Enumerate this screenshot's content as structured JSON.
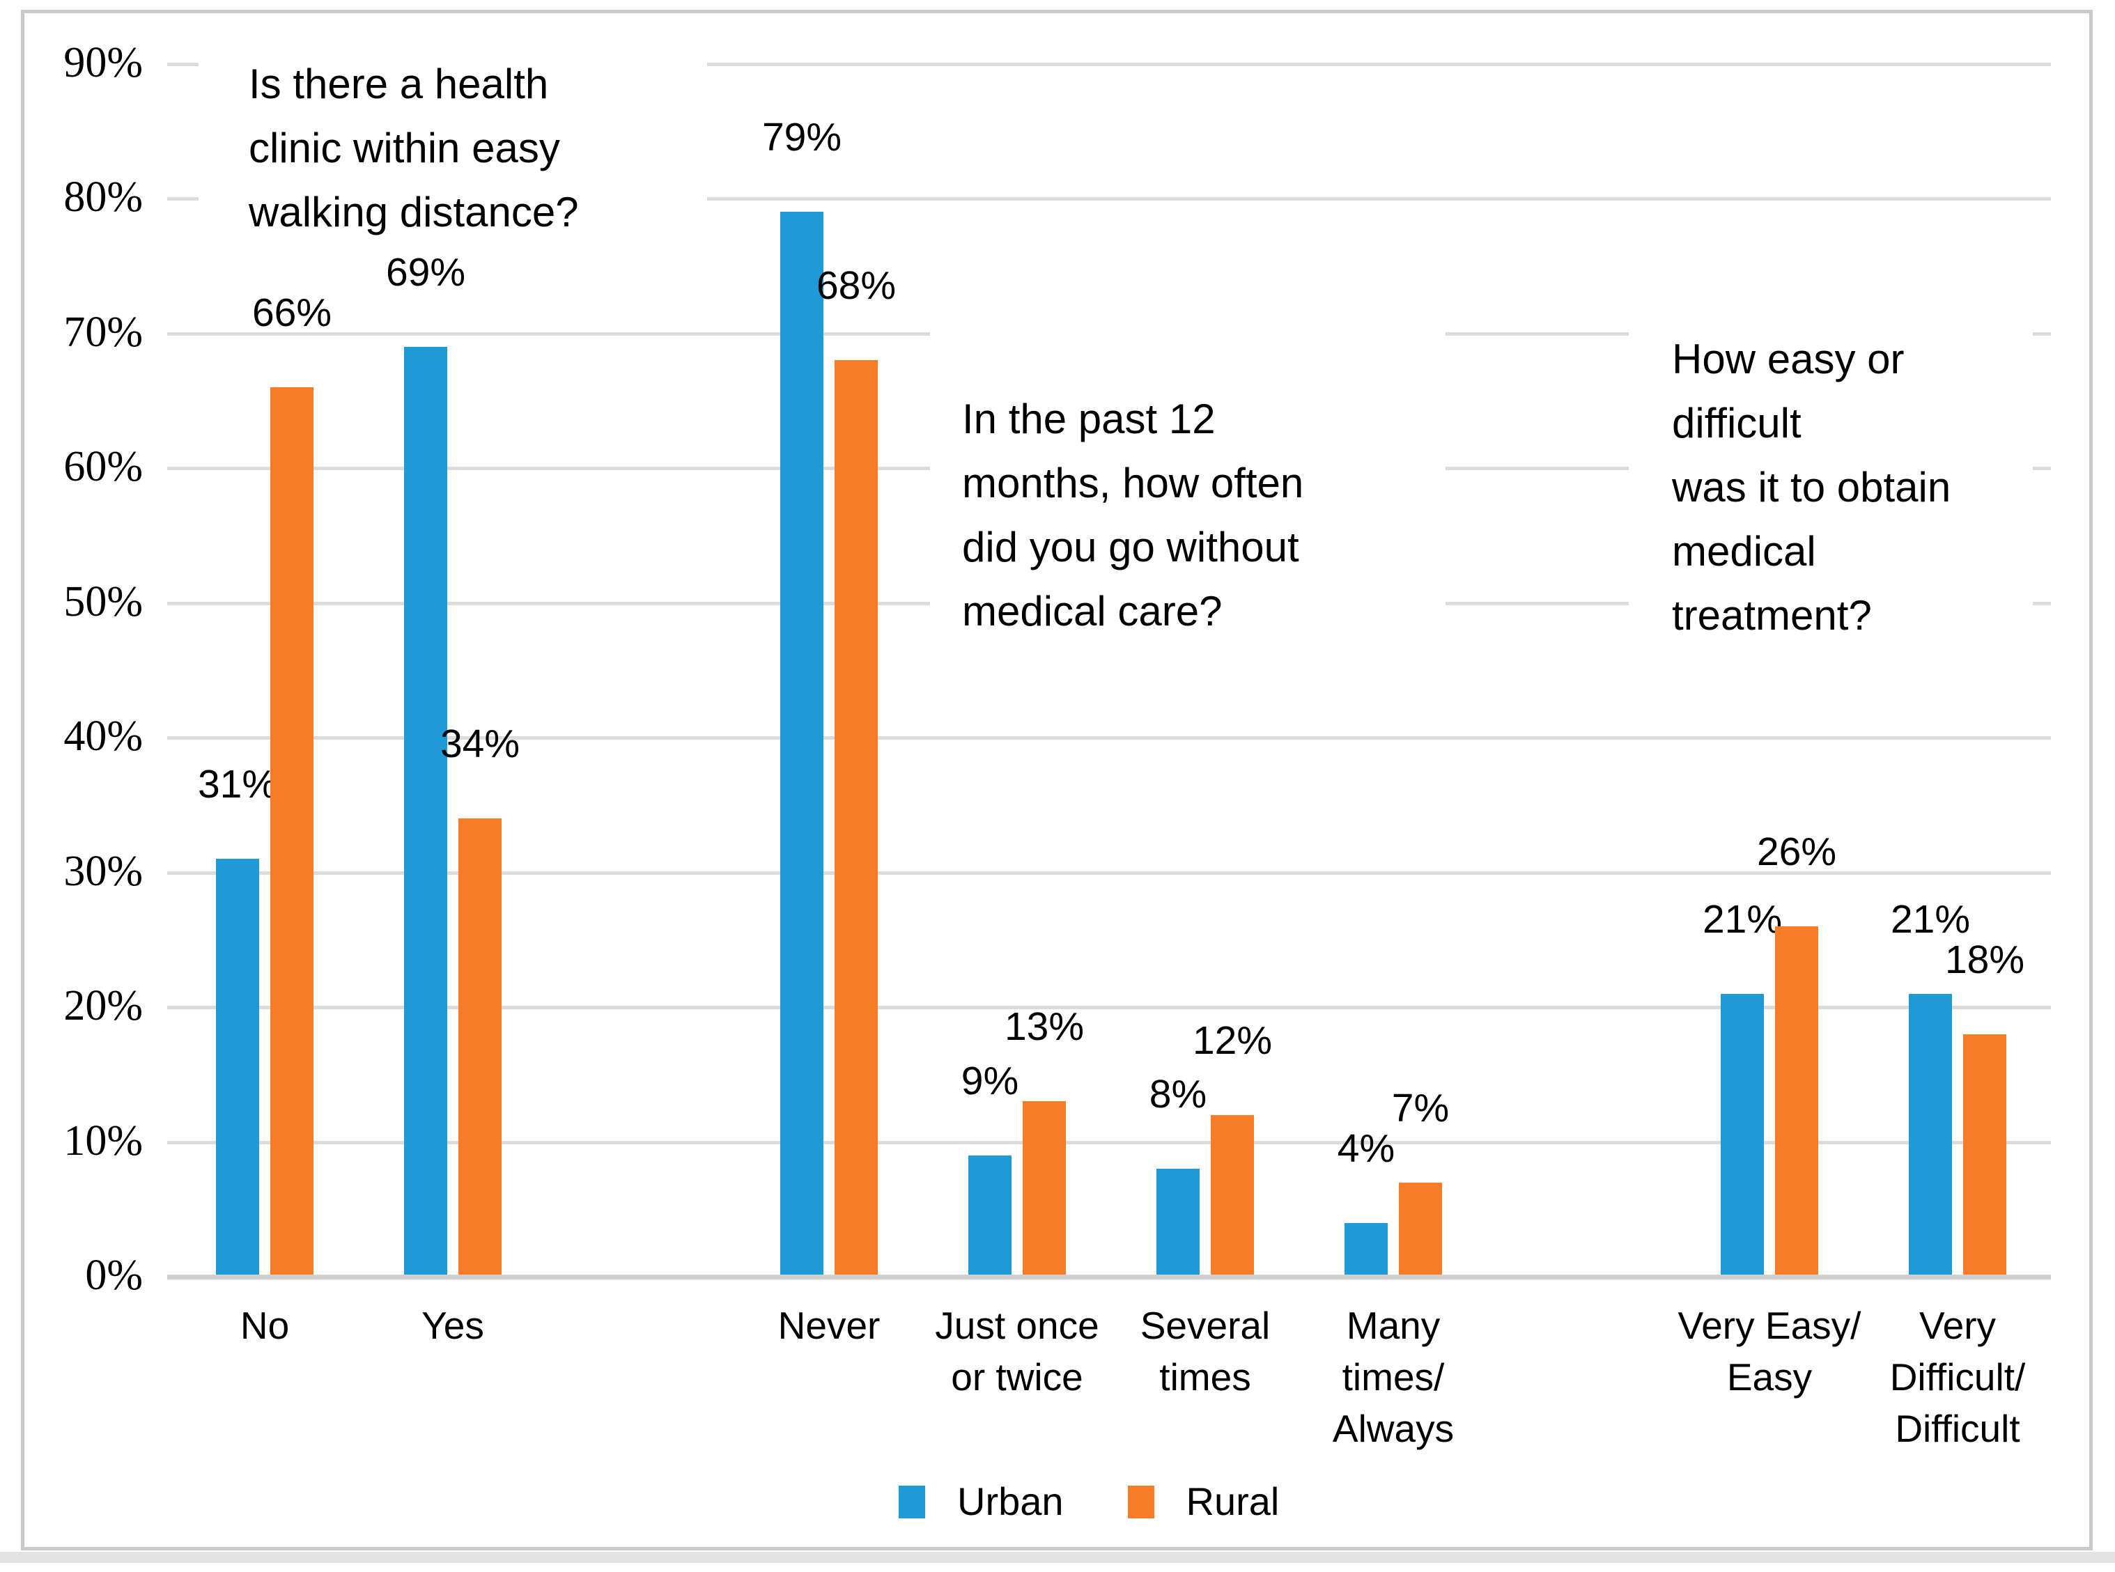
{
  "ui_colors": {
    "urban": "#1E9AD6",
    "rural": "#F97D28",
    "gridline": "#DCDCDC",
    "axis_line": "#D0D0D0",
    "frame_border": "#C9C9C9",
    "bottom_band": "#E3E3E3",
    "text": "#000000",
    "background": "#FFFFFF"
  },
  "chart_data": {
    "type": "bar",
    "orientation": "vertical",
    "grid": "horizontal",
    "legend_position": "bottom",
    "value_label_suffix": "%",
    "y_axis": {
      "min": 0,
      "max": 90,
      "step": 10,
      "unit": "%",
      "tick_labels": [
        "0%",
        "10%",
        "20%",
        "30%",
        "40%",
        "50%",
        "60%",
        "70%",
        "80%",
        "90%"
      ]
    },
    "series": [
      {
        "name": "Urban",
        "color": "#1E9AD6"
      },
      {
        "name": "Rural",
        "color": "#F97D28"
      }
    ],
    "groups": [
      {
        "question": "Is there a health clinic within easy walking distance?",
        "question_lines": [
          "Is there a health",
          "clinic within easy",
          "walking distance?"
        ],
        "categories": [
          {
            "label": "No",
            "label_lines": [
              "No"
            ],
            "values": [
              31,
              66
            ]
          },
          {
            "label": "Yes",
            "label_lines": [
              "Yes"
            ],
            "values": [
              69,
              34
            ]
          }
        ]
      },
      {
        "question": "In the past 12 months, how often did you go without medical care?",
        "question_lines": [
          "In the past 12",
          "months, how often",
          "did you go without",
          "medical care?"
        ],
        "categories": [
          {
            "label": "Never",
            "label_lines": [
              "Never"
            ],
            "values": [
              79,
              68
            ]
          },
          {
            "label": "Just once or twice",
            "label_lines": [
              "Just once",
              "or twice"
            ],
            "values": [
              9,
              13
            ]
          },
          {
            "label": "Several times",
            "label_lines": [
              "Several",
              "times"
            ],
            "values": [
              8,
              12
            ]
          },
          {
            "label": "Many times/Always",
            "label_lines": [
              "Many",
              "times/",
              "Always"
            ],
            "values": [
              4,
              7
            ]
          }
        ]
      },
      {
        "question": "How easy or difficult was it to obtain medical treatment?",
        "question_lines": [
          "How easy or",
          "difficult",
          "was it to obtain",
          "medical",
          "treatment?"
        ],
        "categories": [
          {
            "label": "Very Easy/Easy",
            "label_lines": [
              "Very Easy/",
              "Easy"
            ],
            "values": [
              21,
              26
            ]
          },
          {
            "label": "Very Difficult/Difficult",
            "label_lines": [
              "Very",
              "Difficult/",
              "Difficult"
            ],
            "values": [
              21,
              18
            ]
          }
        ]
      }
    ]
  }
}
